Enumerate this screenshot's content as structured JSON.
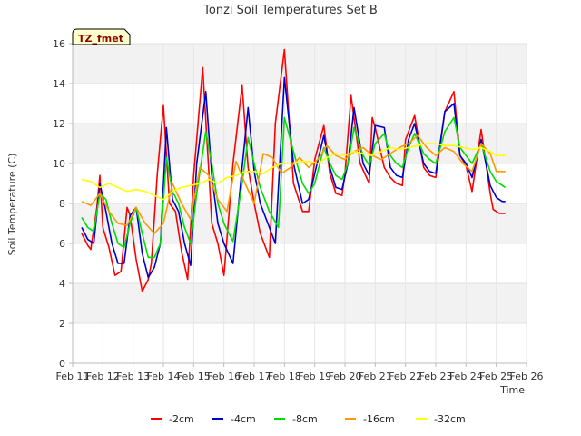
{
  "chart_data": {
    "type": "line",
    "title": "Tonzi Soil Temperatures Set B",
    "xlabel": "Time",
    "ylabel": "Soil Temperature (C)",
    "badge": "TZ_fmet",
    "xlim": [
      11,
      26
    ],
    "ylim": [
      0,
      16
    ],
    "x_ticks": [
      {
        "v": 11,
        "label": "Feb 11"
      },
      {
        "v": 12,
        "label": "Feb 12"
      },
      {
        "v": 13,
        "label": "Feb 13"
      },
      {
        "v": 14,
        "label": "Feb 14"
      },
      {
        "v": 15,
        "label": "Feb 15"
      },
      {
        "v": 16,
        "label": "Feb 16"
      },
      {
        "v": 17,
        "label": "Feb 17"
      },
      {
        "v": 18,
        "label": "Feb 18"
      },
      {
        "v": 19,
        "label": "Feb 19"
      },
      {
        "v": 20,
        "label": "Feb 20"
      },
      {
        "v": 21,
        "label": "Feb 21"
      },
      {
        "v": 22,
        "label": "Feb 22"
      },
      {
        "v": 23,
        "label": "Feb 23"
      },
      {
        "v": 24,
        "label": "Feb 24"
      },
      {
        "v": 25,
        "label": "Feb 25"
      },
      {
        "v": 26,
        "label": "Feb 26"
      }
    ],
    "y_ticks": [
      0,
      2,
      4,
      6,
      8,
      10,
      12,
      14,
      16
    ],
    "grid": true,
    "legend": "bottom",
    "series": [
      {
        "name": "-2cm",
        "color": "#ff0000",
        "x": [
          11.3,
          11.5,
          11.6,
          11.8,
          11.9,
          12.0,
          12.2,
          12.4,
          12.6,
          12.8,
          12.9,
          13.1,
          13.3,
          13.5,
          13.6,
          13.8,
          14.0,
          14.2,
          14.4,
          14.6,
          14.8,
          15.0,
          15.3,
          15.5,
          15.6,
          15.8,
          16.0,
          16.3,
          16.6,
          16.8,
          17.0,
          17.2,
          17.5,
          17.7,
          18.0,
          18.3,
          18.6,
          18.8,
          19.0,
          19.3,
          19.5,
          19.7,
          19.9,
          20.0,
          20.2,
          20.5,
          20.8,
          20.9,
          21.0,
          21.3,
          21.5,
          21.7,
          21.9,
          22.0,
          22.3,
          22.6,
          22.8,
          23.0,
          23.3,
          23.6,
          23.8,
          24.0,
          24.2,
          24.5,
          24.8,
          24.9,
          25.1,
          25.3
        ],
        "y": [
          6.5,
          5.9,
          5.7,
          7.8,
          9.4,
          6.8,
          5.8,
          4.4,
          4.6,
          7.8,
          7.4,
          5.2,
          3.6,
          4.2,
          5.0,
          9.5,
          12.9,
          8.0,
          7.6,
          5.6,
          4.2,
          9.4,
          14.8,
          9.6,
          7.0,
          6.0,
          4.4,
          10.0,
          13.9,
          9.8,
          8.0,
          6.5,
          5.3,
          12.0,
          15.7,
          9.0,
          7.6,
          7.6,
          10.2,
          11.9,
          9.5,
          8.5,
          8.4,
          9.5,
          13.4,
          10.0,
          9.0,
          12.3,
          11.8,
          9.8,
          9.3,
          9.0,
          8.9,
          11.2,
          12.4,
          9.8,
          9.4,
          9.3,
          12.6,
          13.6,
          10.4,
          9.9,
          8.6,
          11.7,
          8.5,
          7.7,
          7.5,
          7.5
        ]
      },
      {
        "name": "-4cm",
        "color": "#0000cc",
        "x": [
          11.3,
          11.5,
          11.7,
          11.9,
          12.1,
          12.3,
          12.5,
          12.7,
          12.9,
          13.1,
          13.3,
          13.5,
          13.7,
          13.9,
          14.1,
          14.3,
          14.5,
          14.7,
          14.9,
          15.1,
          15.4,
          15.6,
          15.8,
          16.0,
          16.3,
          16.6,
          16.8,
          17.0,
          17.2,
          17.5,
          17.7,
          18.0,
          18.3,
          18.6,
          18.8,
          19.0,
          19.3,
          19.5,
          19.7,
          19.9,
          20.1,
          20.3,
          20.6,
          20.8,
          21.0,
          21.3,
          21.5,
          21.7,
          21.9,
          22.1,
          22.3,
          22.6,
          22.8,
          23.0,
          23.3,
          23.6,
          23.8,
          24.0,
          24.2,
          24.5,
          24.8,
          25.0,
          25.2,
          25.3
        ],
        "y": [
          6.8,
          6.2,
          6.0,
          9.0,
          7.6,
          6.0,
          5.0,
          5.0,
          7.4,
          7.8,
          5.5,
          4.3,
          4.8,
          6.0,
          11.8,
          8.2,
          7.6,
          6.0,
          4.9,
          10.0,
          13.6,
          9.4,
          7.0,
          6.0,
          5.0,
          9.8,
          12.8,
          9.6,
          8.0,
          6.8,
          6.0,
          14.3,
          10.0,
          8.0,
          8.2,
          9.5,
          11.4,
          9.8,
          8.8,
          8.7,
          10.0,
          12.8,
          10.0,
          9.4,
          11.9,
          11.8,
          9.8,
          9.4,
          9.3,
          11.2,
          12.0,
          10.0,
          9.6,
          9.5,
          12.6,
          13.0,
          10.4,
          10.0,
          9.3,
          11.2,
          8.9,
          8.3,
          8.1,
          8.1
        ]
      },
      {
        "name": "-8cm",
        "color": "#00dd00",
        "x": [
          11.3,
          11.5,
          11.7,
          11.9,
          12.1,
          12.3,
          12.5,
          12.7,
          12.9,
          13.1,
          13.3,
          13.5,
          13.7,
          13.9,
          14.1,
          14.3,
          14.5,
          14.7,
          14.9,
          15.1,
          15.4,
          15.6,
          15.8,
          16.0,
          16.3,
          16.6,
          16.8,
          17.0,
          17.2,
          17.5,
          17.8,
          18.0,
          18.3,
          18.6,
          18.8,
          19.0,
          19.3,
          19.5,
          19.7,
          19.9,
          20.1,
          20.3,
          20.6,
          20.8,
          21.0,
          21.3,
          21.5,
          21.7,
          21.9,
          22.1,
          22.3,
          22.6,
          22.8,
          23.0,
          23.3,
          23.6,
          23.8,
          24.0,
          24.2,
          24.5,
          24.8,
          25.0,
          25.2,
          25.3
        ],
        "y": [
          7.3,
          6.8,
          6.6,
          8.5,
          8.2,
          7.0,
          6.0,
          5.8,
          7.0,
          7.8,
          6.5,
          5.3,
          5.3,
          6.0,
          10.3,
          8.6,
          8.0,
          6.8,
          6.0,
          8.5,
          11.6,
          10.0,
          8.0,
          7.0,
          6.1,
          9.0,
          11.3,
          10.0,
          8.8,
          7.6,
          6.8,
          12.3,
          10.6,
          9.0,
          8.5,
          9.0,
          10.8,
          10.0,
          9.4,
          9.2,
          10.0,
          11.8,
          10.4,
          9.9,
          11.0,
          11.5,
          10.4,
          10.0,
          9.8,
          10.8,
          11.5,
          10.5,
          10.2,
          10.0,
          11.6,
          12.3,
          10.8,
          10.4,
          10.0,
          11.0,
          9.6,
          9.1,
          8.9,
          8.8
        ]
      },
      {
        "name": "-16cm",
        "color": "#ff9900",
        "x": [
          11.3,
          11.6,
          11.9,
          12.2,
          12.5,
          12.8,
          13.1,
          13.4,
          13.7,
          14.0,
          14.3,
          14.6,
          14.9,
          15.2,
          15.5,
          15.8,
          16.1,
          16.4,
          16.7,
          17.0,
          17.3,
          17.6,
          17.9,
          18.2,
          18.5,
          18.8,
          19.1,
          19.4,
          19.7,
          20.0,
          20.3,
          20.6,
          20.9,
          21.2,
          21.5,
          21.8,
          22.1,
          22.4,
          22.7,
          23.0,
          23.3,
          23.6,
          23.9,
          24.2,
          24.5,
          24.8,
          25.0,
          25.3
        ],
        "y": [
          8.1,
          7.9,
          8.5,
          7.6,
          7.0,
          6.9,
          7.8,
          7.0,
          6.5,
          7.0,
          9.0,
          8.0,
          7.2,
          9.8,
          9.4,
          8.2,
          7.6,
          10.1,
          9.0,
          8.0,
          10.5,
          10.3,
          9.5,
          9.8,
          10.3,
          9.8,
          10.2,
          10.9,
          10.4,
          10.2,
          10.6,
          10.8,
          10.4,
          10.2,
          10.5,
          10.8,
          11.0,
          11.4,
          10.8,
          10.4,
          10.8,
          10.6,
          10.0,
          9.6,
          11.0,
          10.5,
          9.6,
          9.6
        ]
      },
      {
        "name": "-32cm",
        "color": "#ffff00",
        "x": [
          11.3,
          11.6,
          11.9,
          12.2,
          12.5,
          12.8,
          13.1,
          13.4,
          13.7,
          14.0,
          14.3,
          14.6,
          14.9,
          15.2,
          15.5,
          15.8,
          16.1,
          16.4,
          16.7,
          17.0,
          17.3,
          17.6,
          17.9,
          18.2,
          18.5,
          18.8,
          19.1,
          19.4,
          19.7,
          20.0,
          20.3,
          20.6,
          20.9,
          21.2,
          21.5,
          21.8,
          22.1,
          22.4,
          22.7,
          23.0,
          23.3,
          23.6,
          23.9,
          24.2,
          24.5,
          24.8,
          25.0,
          25.3
        ],
        "y": [
          9.2,
          9.1,
          8.8,
          9.0,
          8.8,
          8.6,
          8.7,
          8.6,
          8.4,
          8.2,
          8.6,
          8.8,
          8.9,
          9.0,
          9.2,
          9.0,
          9.3,
          9.4,
          9.6,
          9.6,
          9.5,
          9.8,
          10.0,
          10.0,
          10.1,
          10.1,
          10.0,
          10.3,
          10.5,
          10.4,
          10.6,
          10.5,
          10.4,
          10.6,
          10.8,
          10.7,
          10.8,
          10.9,
          11.0,
          11.0,
          10.9,
          10.9,
          10.8,
          10.7,
          10.8,
          10.6,
          10.4,
          10.4
        ]
      }
    ]
  }
}
